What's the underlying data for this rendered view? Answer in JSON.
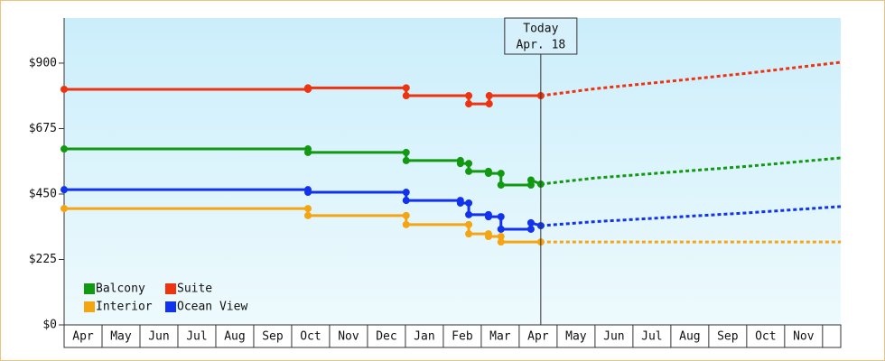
{
  "chart_data": {
    "type": "line",
    "step_markers": true,
    "xlim": [
      0,
      20.48
    ],
    "ylim": [
      0,
      1055
    ],
    "yticks": [
      {
        "value": 0,
        "label": "$0"
      },
      {
        "value": 225,
        "label": "$225"
      },
      {
        "value": 450,
        "label": "$450"
      },
      {
        "value": 675,
        "label": "$675"
      },
      {
        "value": 900,
        "label": "$900"
      }
    ],
    "xticks": [
      {
        "value": 0.5,
        "label": "Apr"
      },
      {
        "value": 1.5,
        "label": "May"
      },
      {
        "value": 2.5,
        "label": "Jun"
      },
      {
        "value": 3.5,
        "label": "Jul"
      },
      {
        "value": 4.5,
        "label": "Aug"
      },
      {
        "value": 5.5,
        "label": "Sep"
      },
      {
        "value": 6.5,
        "label": "Oct"
      },
      {
        "value": 7.5,
        "label": "Nov"
      },
      {
        "value": 8.5,
        "label": "Dec"
      },
      {
        "value": 9.5,
        "label": "Jan"
      },
      {
        "value": 10.5,
        "label": "Feb"
      },
      {
        "value": 11.5,
        "label": "Mar"
      },
      {
        "value": 12.5,
        "label": "Apr"
      },
      {
        "value": 13.5,
        "label": "May"
      },
      {
        "value": 14.5,
        "label": "Jun"
      },
      {
        "value": 15.5,
        "label": "Jul"
      },
      {
        "value": 16.5,
        "label": "Aug"
      },
      {
        "value": 17.5,
        "label": "Sep"
      },
      {
        "value": 18.5,
        "label": "Oct"
      },
      {
        "value": 19.5,
        "label": "Nov"
      }
    ],
    "annotation": {
      "x": 12.57,
      "lines": [
        "Today",
        "Apr. 18"
      ]
    },
    "series": [
      {
        "name": "Balcony",
        "color": "#119911",
        "x": [
          0,
          6.43,
          6.43,
          9.02,
          9.02,
          10.45,
          10.45,
          10.67,
          10.67,
          11.19,
          11.19,
          11.52,
          11.52,
          12.31,
          12.31,
          12.57
        ],
        "values": [
          605,
          605,
          593,
          593,
          565,
          565,
          555,
          555,
          528,
          528,
          521,
          521,
          481,
          481,
          498,
          484
        ],
        "forecast": {
          "x": [
            12.57,
            14,
            16,
            18,
            20.48
          ],
          "values": [
            484,
            505,
            525,
            545,
            574
          ]
        }
      },
      {
        "name": "Suite",
        "color": "#ee3311",
        "x": [
          0,
          6.43,
          6.43,
          9.02,
          9.02,
          10.67,
          10.67,
          11.21,
          11.21,
          12.57
        ],
        "values": [
          810,
          810,
          815,
          815,
          788,
          788,
          760,
          760,
          788,
          788
        ],
        "forecast": {
          "x": [
            12.57,
            14,
            16,
            18,
            20.48
          ],
          "values": [
            788,
            812,
            838,
            865,
            903
          ]
        }
      },
      {
        "name": "Interior",
        "color": "#f5a511",
        "x": [
          0,
          6.43,
          6.43,
          9.02,
          9.02,
          10.67,
          10.67,
          11.19,
          11.19,
          11.52,
          11.52,
          12.57
        ],
        "values": [
          400,
          400,
          376,
          376,
          345,
          345,
          313,
          313,
          304,
          304,
          285,
          285
        ],
        "forecast": {
          "x": [
            12.57,
            20.48
          ],
          "values": [
            285,
            285
          ]
        }
      },
      {
        "name": "Ocean View",
        "color": "#1133ee",
        "x": [
          0,
          6.43,
          6.43,
          9.02,
          9.02,
          10.45,
          10.45,
          10.67,
          10.67,
          11.19,
          11.19,
          11.52,
          11.52,
          12.31,
          12.31,
          12.57
        ],
        "values": [
          465,
          465,
          456,
          456,
          428,
          428,
          419,
          419,
          379,
          379,
          372,
          372,
          329,
          329,
          351,
          341
        ],
        "forecast": {
          "x": [
            12.57,
            14,
            16,
            18,
            20.48
          ],
          "values": [
            341,
            355,
            370,
            385,
            407
          ]
        }
      }
    ]
  }
}
